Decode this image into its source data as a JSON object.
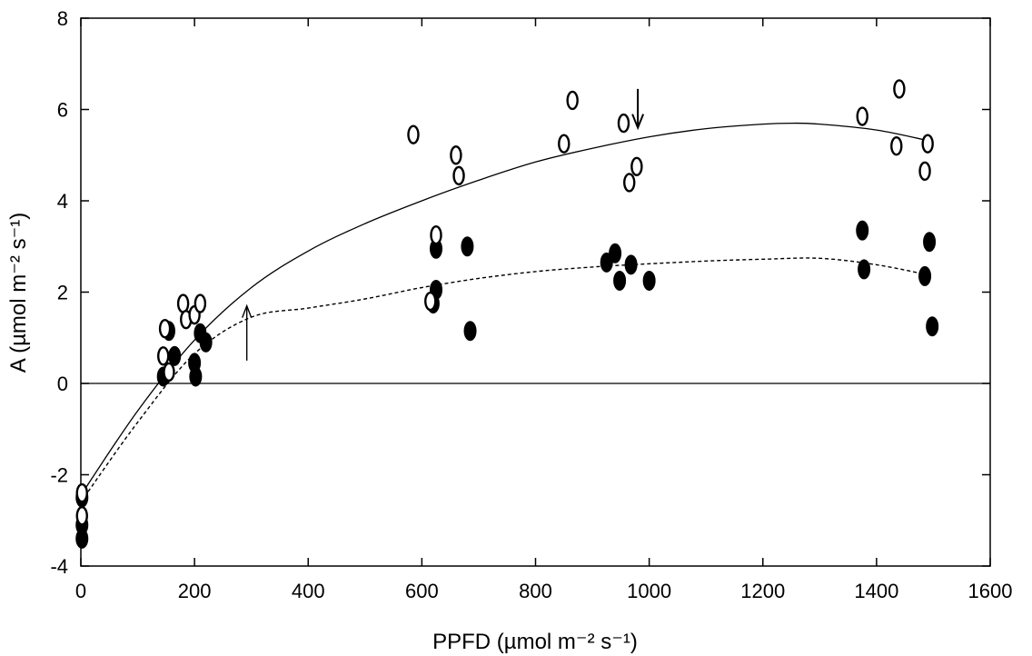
{
  "chart_data": {
    "type": "scatter",
    "title": "",
    "xlabel": "PPFD (µmol m⁻² s⁻¹)",
    "ylabel": "A (µmol m⁻² s⁻¹)",
    "xlim": [
      0,
      1600
    ],
    "ylim": [
      -4,
      8
    ],
    "xticks": [
      0,
      200,
      400,
      600,
      800,
      1000,
      1200,
      1400,
      1600
    ],
    "yticks": [
      -4,
      -2,
      0,
      2,
      4,
      6,
      8
    ],
    "grid": false,
    "zero_line": true,
    "series": [
      {
        "marker": "open-ellipse",
        "points": [
          [
            2,
            -2.4
          ],
          [
            2,
            -2.9
          ],
          [
            145,
            0.6
          ],
          [
            148,
            1.2
          ],
          [
            155,
            0.25
          ],
          [
            180,
            1.75
          ],
          [
            185,
            1.4
          ],
          [
            200,
            1.5
          ],
          [
            210,
            1.75
          ],
          [
            585,
            5.45
          ],
          [
            615,
            1.8
          ],
          [
            625,
            3.25
          ],
          [
            660,
            5.0
          ],
          [
            665,
            4.55
          ],
          [
            850,
            5.25
          ],
          [
            865,
            6.2
          ],
          [
            955,
            5.7
          ],
          [
            965,
            4.4
          ],
          [
            978,
            4.75
          ],
          [
            1375,
            5.85
          ],
          [
            1435,
            5.2
          ],
          [
            1440,
            6.45
          ],
          [
            1485,
            4.65
          ],
          [
            1490,
            5.25
          ]
        ],
        "fit_line_style": "solid",
        "fit_curve": [
          [
            0,
            -2.45
          ],
          [
            100,
            -0.6
          ],
          [
            200,
            0.95
          ],
          [
            300,
            2.1
          ],
          [
            400,
            2.9
          ],
          [
            500,
            3.5
          ],
          [
            600,
            4.0
          ],
          [
            700,
            4.45
          ],
          [
            800,
            4.85
          ],
          [
            900,
            5.15
          ],
          [
            1000,
            5.4
          ],
          [
            1100,
            5.58
          ],
          [
            1200,
            5.68
          ],
          [
            1250,
            5.7
          ],
          [
            1300,
            5.68
          ],
          [
            1400,
            5.55
          ],
          [
            1490,
            5.32
          ]
        ]
      },
      {
        "marker": "filled-ellipse",
        "points": [
          [
            2,
            -2.5
          ],
          [
            2,
            -3.1
          ],
          [
            2,
            -3.4
          ],
          [
            145,
            0.15
          ],
          [
            155,
            1.15
          ],
          [
            165,
            0.6
          ],
          [
            200,
            0.45
          ],
          [
            202,
            0.15
          ],
          [
            210,
            1.1
          ],
          [
            220,
            0.9
          ],
          [
            620,
            1.75
          ],
          [
            625,
            2.05
          ],
          [
            625,
            2.95
          ],
          [
            680,
            3.0
          ],
          [
            685,
            1.15
          ],
          [
            925,
            2.65
          ],
          [
            940,
            2.85
          ],
          [
            948,
            2.25
          ],
          [
            968,
            2.6
          ],
          [
            1000,
            2.25
          ],
          [
            1375,
            3.35
          ],
          [
            1378,
            2.5
          ],
          [
            1485,
            2.35
          ],
          [
            1493,
            3.1
          ],
          [
            1498,
            1.25
          ]
        ],
        "fit_line_style": "dashed",
        "fit_curve": [
          [
            0,
            -2.6
          ],
          [
            100,
            -0.85
          ],
          [
            200,
            0.65
          ],
          [
            300,
            1.45
          ],
          [
            400,
            1.65
          ],
          [
            500,
            1.85
          ],
          [
            600,
            2.1
          ],
          [
            700,
            2.3
          ],
          [
            800,
            2.45
          ],
          [
            900,
            2.55
          ],
          [
            1000,
            2.62
          ],
          [
            1100,
            2.68
          ],
          [
            1200,
            2.72
          ],
          [
            1300,
            2.74
          ],
          [
            1400,
            2.6
          ],
          [
            1490,
            2.38
          ]
        ]
      }
    ],
    "annotations": [
      {
        "kind": "arrow-down",
        "x": 980,
        "y_from": 6.45,
        "y_to": 5.6
      },
      {
        "kind": "arrow-up",
        "x": 292,
        "y_from": 0.5,
        "y_to": 1.7
      }
    ]
  }
}
